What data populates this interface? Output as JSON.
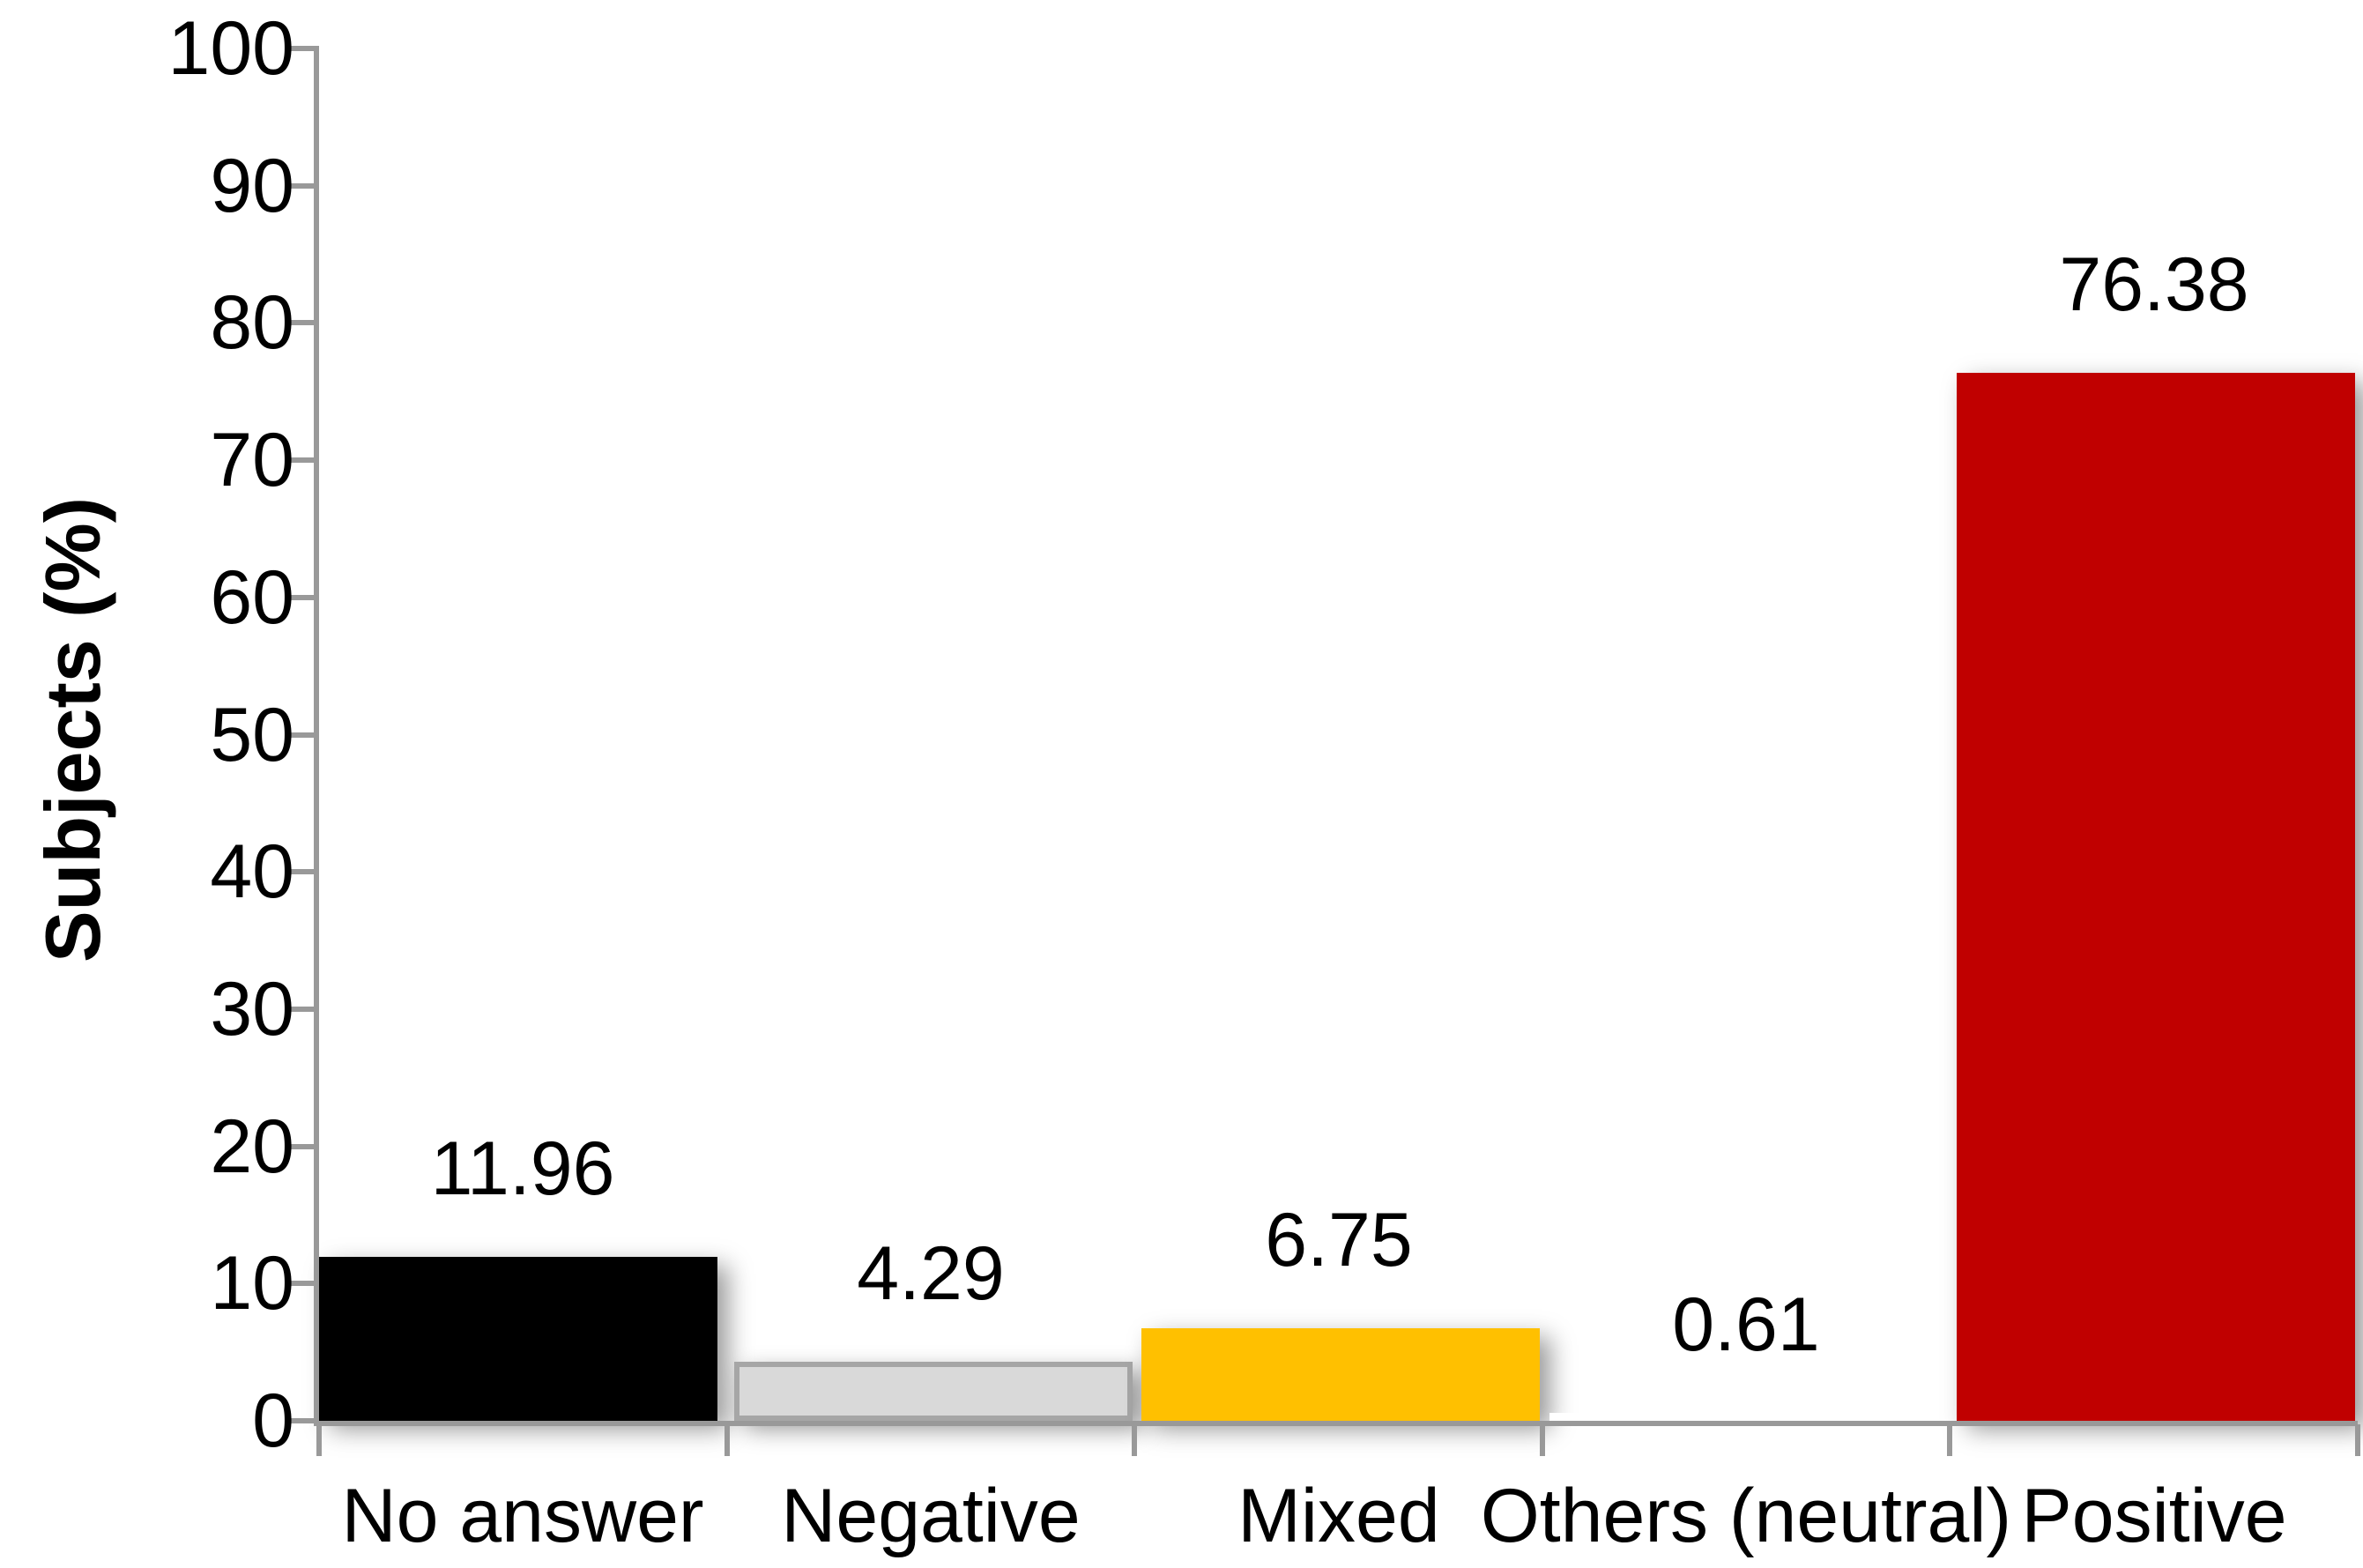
{
  "chart_data": {
    "type": "bar",
    "title": "",
    "categories": [
      "No answer",
      "Negative",
      "Mixed",
      "Others (neutral)",
      "Positive"
    ],
    "values": [
      11.96,
      4.29,
      6.75,
      0.61,
      76.38
    ],
    "value_labels": [
      "11.96",
      "4.29",
      "6.75",
      "0.61",
      "76.38"
    ],
    "series": [
      {
        "name": "Subjects",
        "values": [
          11.96,
          4.29,
          6.75,
          0.61,
          76.38
        ]
      }
    ],
    "bar_colors": [
      "#000000",
      "#D9D9D9",
      "#FFC000",
      "#FFFFFF",
      "#C00000"
    ],
    "bar_border_colors": [
      null,
      "#A6A6A6",
      null,
      null,
      null
    ],
    "bar_has_shadow": [
      true,
      true,
      true,
      false,
      true
    ],
    "xlabel": "",
    "ylabel": "Subjects (%)",
    "ylim": [
      0,
      100
    ],
    "yticks": [
      0,
      10,
      20,
      30,
      40,
      50,
      60,
      70,
      80,
      90,
      100
    ],
    "grid": false,
    "legend": false,
    "data_labels": true,
    "axis_color": "#999999",
    "text_color": "#000000",
    "background_color": "#FFFFFF"
  }
}
